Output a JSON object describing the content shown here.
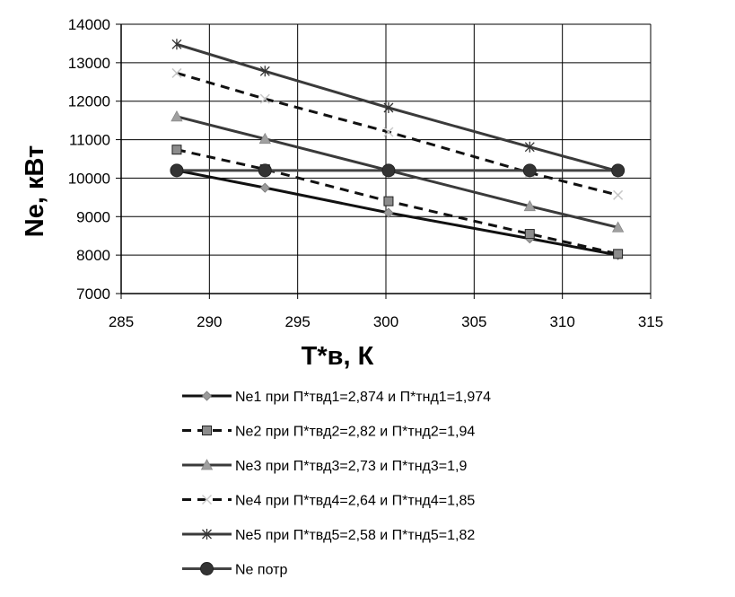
{
  "chart_data": {
    "type": "line",
    "title": "",
    "xlabel": "T*в, К",
    "ylabel": "Ne, кВт",
    "xlim": [
      285,
      315
    ],
    "ylim": [
      7000,
      14000
    ],
    "xticks": [
      285,
      290,
      295,
      300,
      305,
      310,
      315
    ],
    "yticks": [
      7000,
      8000,
      9000,
      10000,
      11000,
      12000,
      13000,
      14000
    ],
    "grid": true,
    "legend_position": "bottom",
    "series": [
      {
        "name": "Ne1 при П*твд1=2,874 и П*тнд1=1,974",
        "x": [
          288.15,
          293.15,
          300.15,
          308.15,
          313.15
        ],
        "y": [
          10200,
          9750,
          9100,
          8430,
          8000
        ],
        "color": "#111111",
        "dash": "solid",
        "marker": "diamond"
      },
      {
        "name": "Ne2 при П*твд2=2,82 и П*тнд2=1,94",
        "x": [
          288.15,
          293.15,
          300.15,
          308.15,
          313.15
        ],
        "y": [
          10740,
          10230,
          9400,
          8550,
          8030
        ],
        "color": "#111111",
        "dash": "dashed",
        "marker": "square"
      },
      {
        "name": "Ne3 при П*твд3=2,73 и П*тнд3=1,9",
        "x": [
          288.15,
          293.15,
          300.15,
          308.15,
          313.15
        ],
        "y": [
          11600,
          11020,
          10200,
          9270,
          8720
        ],
        "color": "#3a3a3a",
        "dash": "solid",
        "marker": "triangle"
      },
      {
        "name": "Ne4 при П*твд4=2,64 и П*тнд4=1,85",
        "x": [
          288.15,
          293.15,
          300.15,
          308.15,
          313.15
        ],
        "y": [
          12730,
          12060,
          11200,
          10140,
          9560
        ],
        "color": "#111111",
        "dash": "dashed",
        "marker": "x"
      },
      {
        "name": "Ne5 при П*твд5=2,58 и П*тнд5=1,82",
        "x": [
          288.15,
          293.15,
          300.15,
          308.15,
          313.15
        ],
        "y": [
          13480,
          12780,
          11830,
          10810,
          10180
        ],
        "color": "#3a3a3a",
        "dash": "solid",
        "marker": "star"
      },
      {
        "name": "Ne потр",
        "x": [
          288.15,
          293.15,
          300.15,
          308.15,
          313.15
        ],
        "y": [
          10200,
          10200,
          10200,
          10200,
          10200
        ],
        "color": "#444444",
        "dash": "solid",
        "marker": "circle"
      }
    ]
  }
}
